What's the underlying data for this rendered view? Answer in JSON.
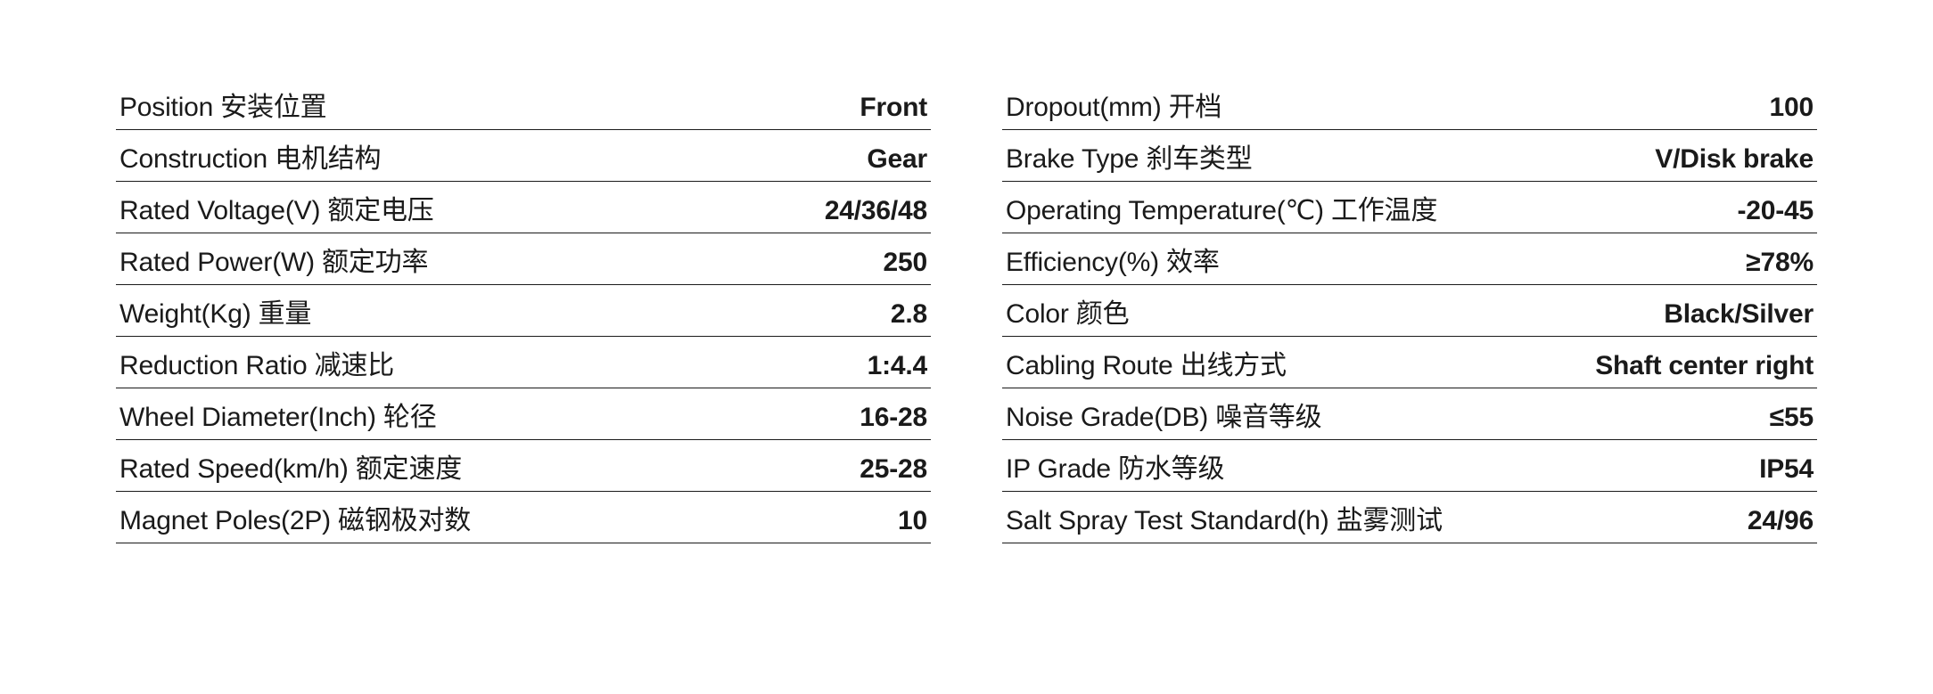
{
  "layout": {
    "columns": 2,
    "row_border_color": "#1a1a1a",
    "background_color": "#ffffff",
    "label_color": "#1a1a1a",
    "value_color": "#1a1a1a",
    "label_fontsize": 30,
    "value_fontsize": 30,
    "label_fontweight": 400,
    "value_fontweight": 600
  },
  "left": {
    "rows": [
      {
        "label": "Position 安装位置",
        "value": "Front"
      },
      {
        "label": "Construction 电机结构",
        "value": "Gear"
      },
      {
        "label": "Rated Voltage(V) 额定电压",
        "value": "24/36/48"
      },
      {
        "label": "Rated Power(W) 额定功率",
        "value": "250"
      },
      {
        "label": "Weight(Kg) 重量",
        "value": "2.8"
      },
      {
        "label": "Reduction Ratio 减速比",
        "value": "1:4.4"
      },
      {
        "label": "Wheel Diameter(Inch) 轮径",
        "value": "16-28"
      },
      {
        "label": "Rated Speed(km/h) 额定速度",
        "value": "25-28"
      },
      {
        "label": "Magnet Poles(2P) 磁钢极对数",
        "value": "10"
      }
    ]
  },
  "right": {
    "rows": [
      {
        "label": "Dropout(mm) 开档",
        "value": "100"
      },
      {
        "label": "Brake Type 刹车类型",
        "value": "V/Disk brake"
      },
      {
        "label": "Operating Temperature(℃) 工作温度",
        "value": "-20-45"
      },
      {
        "label": "Efficiency(%) 效率",
        "value": "≥78%"
      },
      {
        "label": "Color 颜色",
        "value": "Black/Silver"
      },
      {
        "label": "Cabling Route 出线方式",
        "value": "Shaft center right"
      },
      {
        "label": "Noise Grade(DB) 噪音等级",
        "value": "≤55"
      },
      {
        "label": "IP Grade 防水等级",
        "value": "IP54"
      },
      {
        "label": "Salt Spray Test Standard(h) 盐雾测试",
        "value": "24/96"
      }
    ]
  }
}
